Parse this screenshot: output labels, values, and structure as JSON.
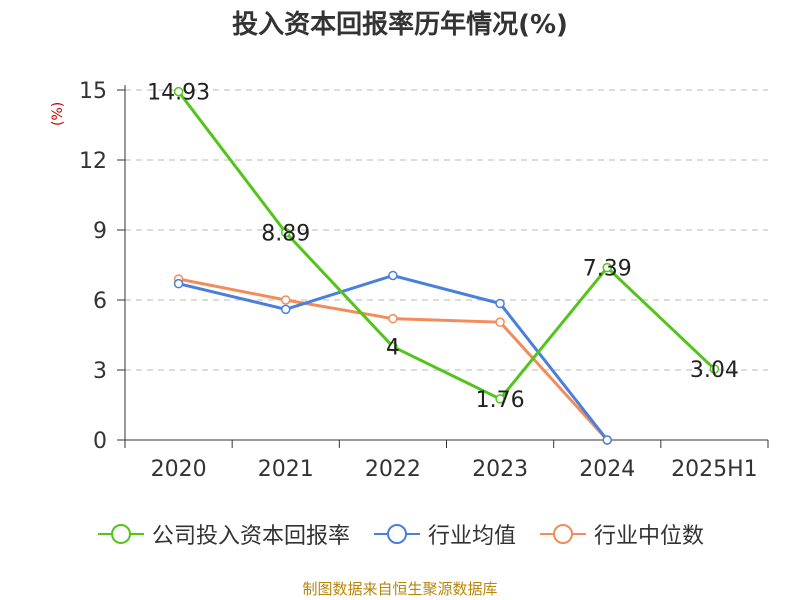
{
  "chart_data": {
    "type": "line",
    "title": "投入资本回报率历年情况(%)",
    "ylabel": "(%)",
    "categories": [
      "2020",
      "2021",
      "2022",
      "2023",
      "2024",
      "2025H1"
    ],
    "ylim": [
      0,
      15
    ],
    "yticks": [
      "0",
      "3",
      "6",
      "9",
      "12",
      "15"
    ],
    "grid": true,
    "legend_position": "bottom",
    "series": [
      {
        "name": "公司投入资本回报率",
        "color": "#52c41a",
        "values": [
          14.93,
          8.89,
          4,
          1.76,
          7.39,
          3.04
        ],
        "labels": [
          "14.93",
          "8.89",
          "4",
          "1.76",
          "7.39",
          "3.04"
        ]
      },
      {
        "name": "行业均值",
        "color": "#4a7fdb",
        "values": [
          6.7,
          5.6,
          7.05,
          5.85,
          0,
          null
        ]
      },
      {
        "name": "行业中位数",
        "color": "#f28c5a",
        "values": [
          6.9,
          6.0,
          5.2,
          5.05,
          0,
          null
        ]
      }
    ]
  },
  "source": "制图数据来自恒生聚源数据库"
}
